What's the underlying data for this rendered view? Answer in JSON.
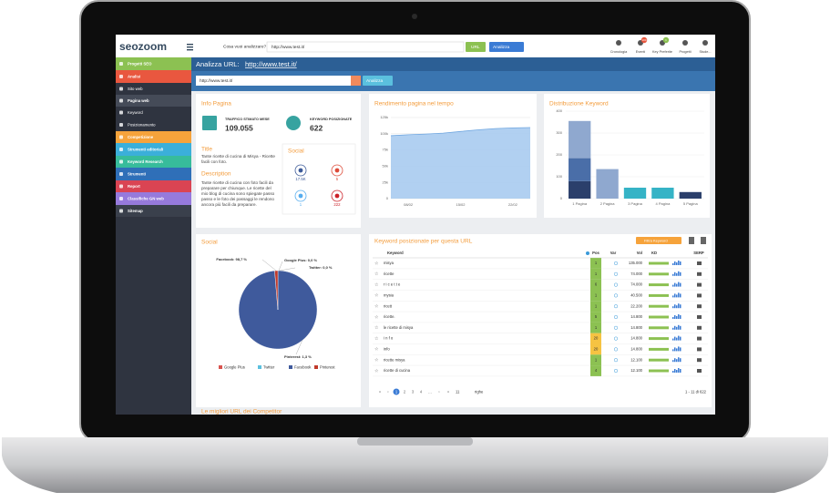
{
  "topbar": {
    "logo": "seozoom",
    "search_label": "Cosa vuoi analizzare?",
    "search_value": "http://www.test.it/",
    "mode": "URL",
    "button": "Analizza",
    "icons": [
      {
        "label": "Cronologia"
      },
      {
        "label": "Eventi",
        "badge": "100"
      },
      {
        "label": "Key Preferite",
        "badge": "1"
      },
      {
        "label": "Progetti"
      },
      {
        "label": "Stude..."
      }
    ]
  },
  "sidebar": [
    {
      "label": "Progetti SEO",
      "color": "#8cc152"
    },
    {
      "label": "Analisi",
      "color": "#e9573f"
    },
    {
      "label": "Sito web",
      "color": "#2f3440"
    },
    {
      "label": "Pagina web",
      "color": "#454b58"
    },
    {
      "label": "Keyword",
      "color": "#2f3440"
    },
    {
      "label": "Posizionamento",
      "color": "#2f3440"
    },
    {
      "label": "Competizione",
      "color": "#f6a33b"
    },
    {
      "label": "Strumenti editoriali",
      "color": "#3bafda"
    },
    {
      "label": "Keyword Research",
      "color": "#37bc9b"
    },
    {
      "label": "Strumenti",
      "color": "#2f6fb8"
    },
    {
      "label": "Report",
      "color": "#da4453"
    },
    {
      "label": "Classifiche GN web",
      "color": "#967adc"
    },
    {
      "label": "Sitemap",
      "color": "#3a404c"
    }
  ],
  "header": {
    "title": "Analizza URL:",
    "url": "http://www.test.it/",
    "input": "http://www.test.it/",
    "button": "Analizza"
  },
  "info": {
    "title": "Info Pagina",
    "traffic_label": "TRAFFICO STIMATO MESE",
    "traffic": "109.055",
    "keywords_label": "KEYWORD POSIZIONATE",
    "keywords": "622",
    "title_heading": "Title",
    "title_text": "Tante ricette di cucina di Misya - Ricette facili con foto.",
    "description_heading": "Description",
    "description_text": "Tante ricette di cucina con foto facili da preparare per chiunque. Le ricette del mio blog di cucina sono spiegate passo passo e le foto dei passaggi le rendono ancora più facili da preparare.",
    "social_title": "Social",
    "social_counts": [
      "17.5K",
      "5",
      "1",
      "222"
    ]
  },
  "performance": {
    "type": "area",
    "title": "Rendimento pagina nel tempo",
    "categories": [
      null,
      "08/02",
      null,
      null,
      "15/02",
      null,
      null,
      "22/02",
      null
    ],
    "values": [
      97000,
      98500,
      99500,
      101000,
      103500,
      106000,
      108000,
      109000,
      109500
    ],
    "color": "#a9cbf0",
    "line_color": "#6fa6e0",
    "ylim": [
      0,
      125000
    ],
    "yticks": [
      0,
      {
        "value": 25000,
        "label": "25k"
      },
      {
        "value": 50000,
        "label": "50k"
      },
      {
        "value": 75000,
        "label": "75k"
      },
      {
        "value": 100000,
        "label": "100k"
      },
      {
        "value": 125000,
        "label": "125k"
      }
    ]
  },
  "distribution": {
    "type": "bar",
    "title": "Distribuzione Keyword",
    "categories": [
      "1 Pagina",
      "2 Pagina",
      "3 Pagina",
      "4 Pagina",
      "5 Pagina"
    ],
    "series": [
      {
        "color": "#2b3f6b",
        "values": [
          80,
          0,
          0,
          0,
          30
        ]
      },
      {
        "color": "#4a6ea8",
        "values": [
          105,
          0,
          0,
          0,
          0
        ]
      },
      {
        "color": "#8fa8cf",
        "values": [
          170,
          135,
          0,
          0,
          0
        ]
      },
      {
        "color": "#35b3c6",
        "values": [
          0,
          0,
          50,
          50,
          0
        ]
      }
    ],
    "ylim": [
      0,
      400
    ],
    "yticks": [
      0,
      100,
      200,
      300,
      400
    ]
  },
  "social_pie": {
    "type": "pie",
    "title": "Social",
    "categories": [
      "Google Plus",
      "Twitter",
      "Facebook",
      "Pinterest"
    ],
    "values": [
      0,
      0,
      98.7,
      1.3
    ],
    "value_labels": [
      "Google Plus: 0,0 %",
      "Twitter: 0,0 %",
      "Facebook: 98,7 %",
      "Pinterest: 1,3 %"
    ],
    "colors": [
      "#d9534f",
      "#5bc0de",
      "#3f5a9c",
      "#c0392b"
    ]
  },
  "keywords": {
    "title": "Keyword posizionate per questa URL",
    "filter": "Filtra Keyword",
    "columns": [
      "Keyword",
      "Pos",
      "Var",
      "Vol",
      "KD",
      "SERP"
    ],
    "rows": [
      [
        "misya",
        1,
        "135.000"
      ],
      [
        "ricette",
        1,
        "74.000"
      ],
      [
        "r i c e t t e",
        6,
        "74.000"
      ],
      [
        "mysia",
        1,
        "40.500"
      ],
      [
        "ricett",
        1,
        "22.200"
      ],
      [
        "ricette.",
        5,
        "14.800"
      ],
      [
        "le ricette di misya",
        1,
        "14.800"
      ],
      [
        "i n f o",
        20,
        "14.800"
      ],
      [
        "info",
        20,
        "14.800"
      ],
      [
        "ricette misya",
        1,
        "12.100"
      ],
      [
        "ricette di cucina",
        4,
        "12.100"
      ]
    ],
    "pagination": [
      "«",
      "‹",
      "1",
      "2",
      "3",
      "4",
      "…",
      "›",
      "»"
    ],
    "page_size": "11",
    "page_size_label": "righe",
    "summary": "1 - 11 di 622"
  },
  "footer_title": "Le migliori URL dei Competitor"
}
